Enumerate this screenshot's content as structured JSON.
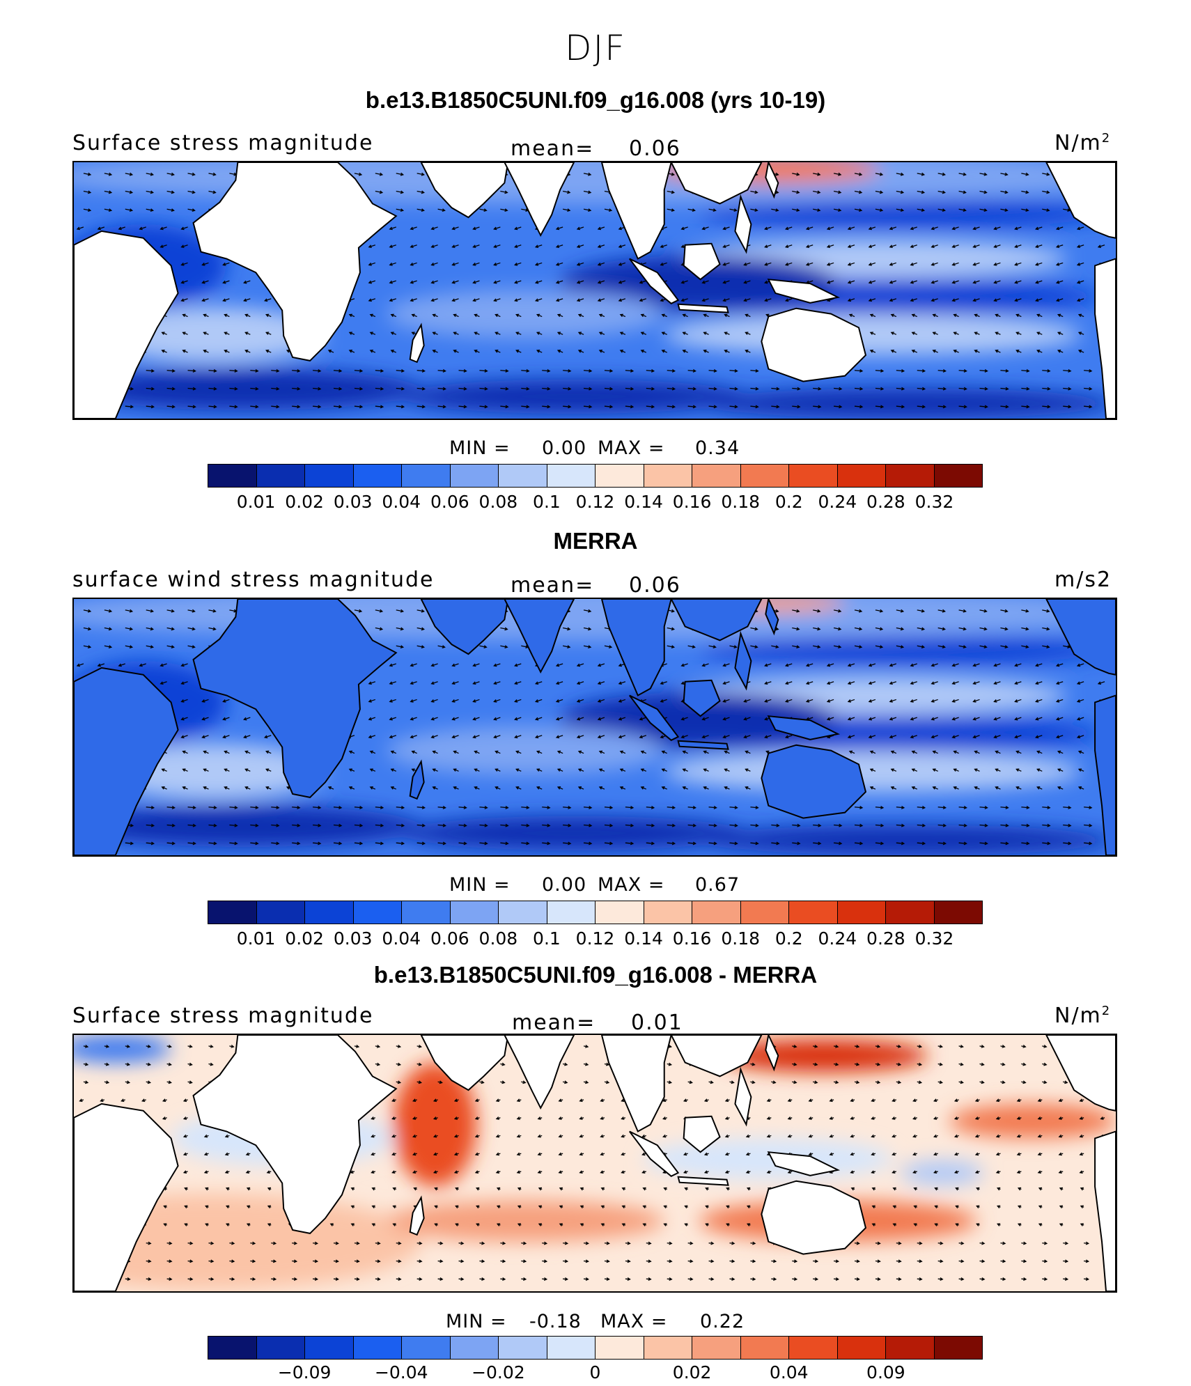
{
  "title": "DJF",
  "panels": [
    {
      "title": "b.e13.B1850C5UNI.f09_g16.008 (yrs 10-19)",
      "left_label": "Surface stress magnitude",
      "mean_label": "mean=",
      "mean_value": "0.06",
      "units_base": "N/m",
      "units_sup": "2",
      "min_label": "MIN =",
      "min_value": "0.00",
      "max_label": "MAX =",
      "max_value": "0.34",
      "field_type": "model",
      "colorbar_ticks": [
        "0.01",
        "0.02",
        "0.03",
        "0.04",
        "0.06",
        "0.08",
        "0.1",
        "0.12",
        "0.14",
        "0.16",
        "0.18",
        "0.2",
        "0.24",
        "0.28",
        "0.32"
      ]
    },
    {
      "title": "MERRA",
      "left_label": "surface wind stress magnitude",
      "mean_label": "mean=",
      "mean_value": "0.06",
      "units_base": "m/s2",
      "units_sup": "",
      "min_label": "MIN =",
      "min_value": "0.00",
      "max_label": "MAX =",
      "max_value": "0.67",
      "field_type": "obs",
      "colorbar_ticks": [
        "0.01",
        "0.02",
        "0.03",
        "0.04",
        "0.06",
        "0.08",
        "0.1",
        "0.12",
        "0.14",
        "0.16",
        "0.18",
        "0.2",
        "0.24",
        "0.28",
        "0.32"
      ]
    },
    {
      "title": "b.e13.B1850C5UNI.f09_g16.008 - MERRA",
      "left_label": "Surface stress magnitude",
      "mean_label": "mean=",
      "mean_value": "0.01",
      "units_base": "N/m",
      "units_sup": "2",
      "min_label": "MIN =",
      "min_value": "-0.18",
      "max_label": "MAX =",
      "max_value": "0.22",
      "field_type": "diff",
      "colorbar_ticks": [
        "−0.09",
        "−0.04",
        "−0.02",
        "0",
        "0.02",
        "0.04",
        "0.09"
      ]
    }
  ],
  "colorbar_colors": [
    "#08136e",
    "#0a2eb0",
    "#0c43d6",
    "#1b5ff0",
    "#3f7cf0",
    "#7da4f3",
    "#b0c9f7",
    "#d7e6fb",
    "#fde9db",
    "#fbc4a7",
    "#f6a07e",
    "#f27a51",
    "#ea4d22",
    "#d9310d",
    "#b51b06",
    "#7c0a02"
  ]
}
